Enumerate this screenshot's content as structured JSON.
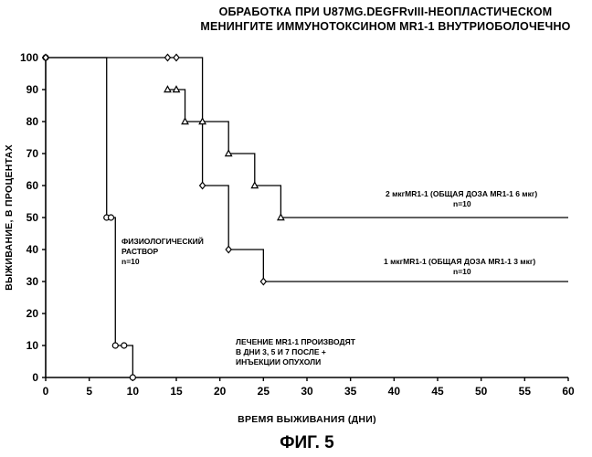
{
  "chart_data": {
    "type": "line",
    "title": "ОБРАБОТКА ПРИ U87MG.DEGFRvIII-НЕОПЛАСТИЧЕСКОМ МЕНИНГИТЕ ИММУНОТОКСИНОМ MR1-1 ВНУТРИОБОЛОЧЕЧНО",
    "title_lines": [
      "ОБРАБОТКА ПРИ U87MG.DEGFRvIII-НЕОПЛАСТИЧЕСКОМ",
      "МЕНИНГИТЕ ИММУНОТОКСИНОМ MR1-1 ВНУТРИОБОЛОЧЕЧНО"
    ],
    "xlabel": "ВРЕМЯ ВЫЖИВАНИЯ (ДНИ)",
    "ylabel": "ВЫЖИВАНИЕ, В ПРОЦЕНТАХ",
    "xlim": [
      0,
      60
    ],
    "ylim": [
      0,
      100
    ],
    "xticks": [
      0,
      5,
      10,
      15,
      20,
      25,
      30,
      35,
      40,
      45,
      50,
      55,
      60
    ],
    "yticks": [
      0,
      10,
      20,
      30,
      40,
      50,
      60,
      70,
      80,
      90,
      100
    ],
    "grid": false,
    "series": [
      {
        "marker": "circle",
        "x": [
          0,
          7,
          7.5,
          8,
          9,
          10
        ],
        "y": [
          100,
          50,
          50,
          10,
          10,
          0
        ],
        "end_x": 10,
        "annotation": [
          "ФИЗИОЛОГИЧЕСКИЙ",
          "РАСТВОР",
          "n=10"
        ]
      },
      {
        "marker": "diamond",
        "x": [
          0,
          14,
          15,
          18,
          21,
          25
        ],
        "y": [
          100,
          100,
          100,
          60,
          40,
          30
        ],
        "end_x": 60,
        "annotation": [
          "1 мкгMR1-1 (ОБЩАЯ ДОЗА MR1-1 3 мкг)",
          "n=10"
        ]
      },
      {
        "marker": "triangle",
        "x": [
          14,
          15,
          16,
          18,
          21,
          24,
          27
        ],
        "y": [
          90,
          90,
          80,
          80,
          70,
          60,
          50
        ],
        "end_x": 60,
        "annotation": [
          "2 мкгMR1-1 (ОБЩАЯ ДОЗА MR1-1 6 мкг)",
          "n=10"
        ]
      }
    ],
    "treatment_note": [
      "ЛЕЧЕНИЕ MR1-1 ПРОИЗВОДЯТ",
      "В ДНИ 3, 5 И 7 ПОСЛЕ +",
      "ИНЪЕКЦИИ ОПУХОЛИ"
    ],
    "figure_label": "ФИГ. 5"
  }
}
